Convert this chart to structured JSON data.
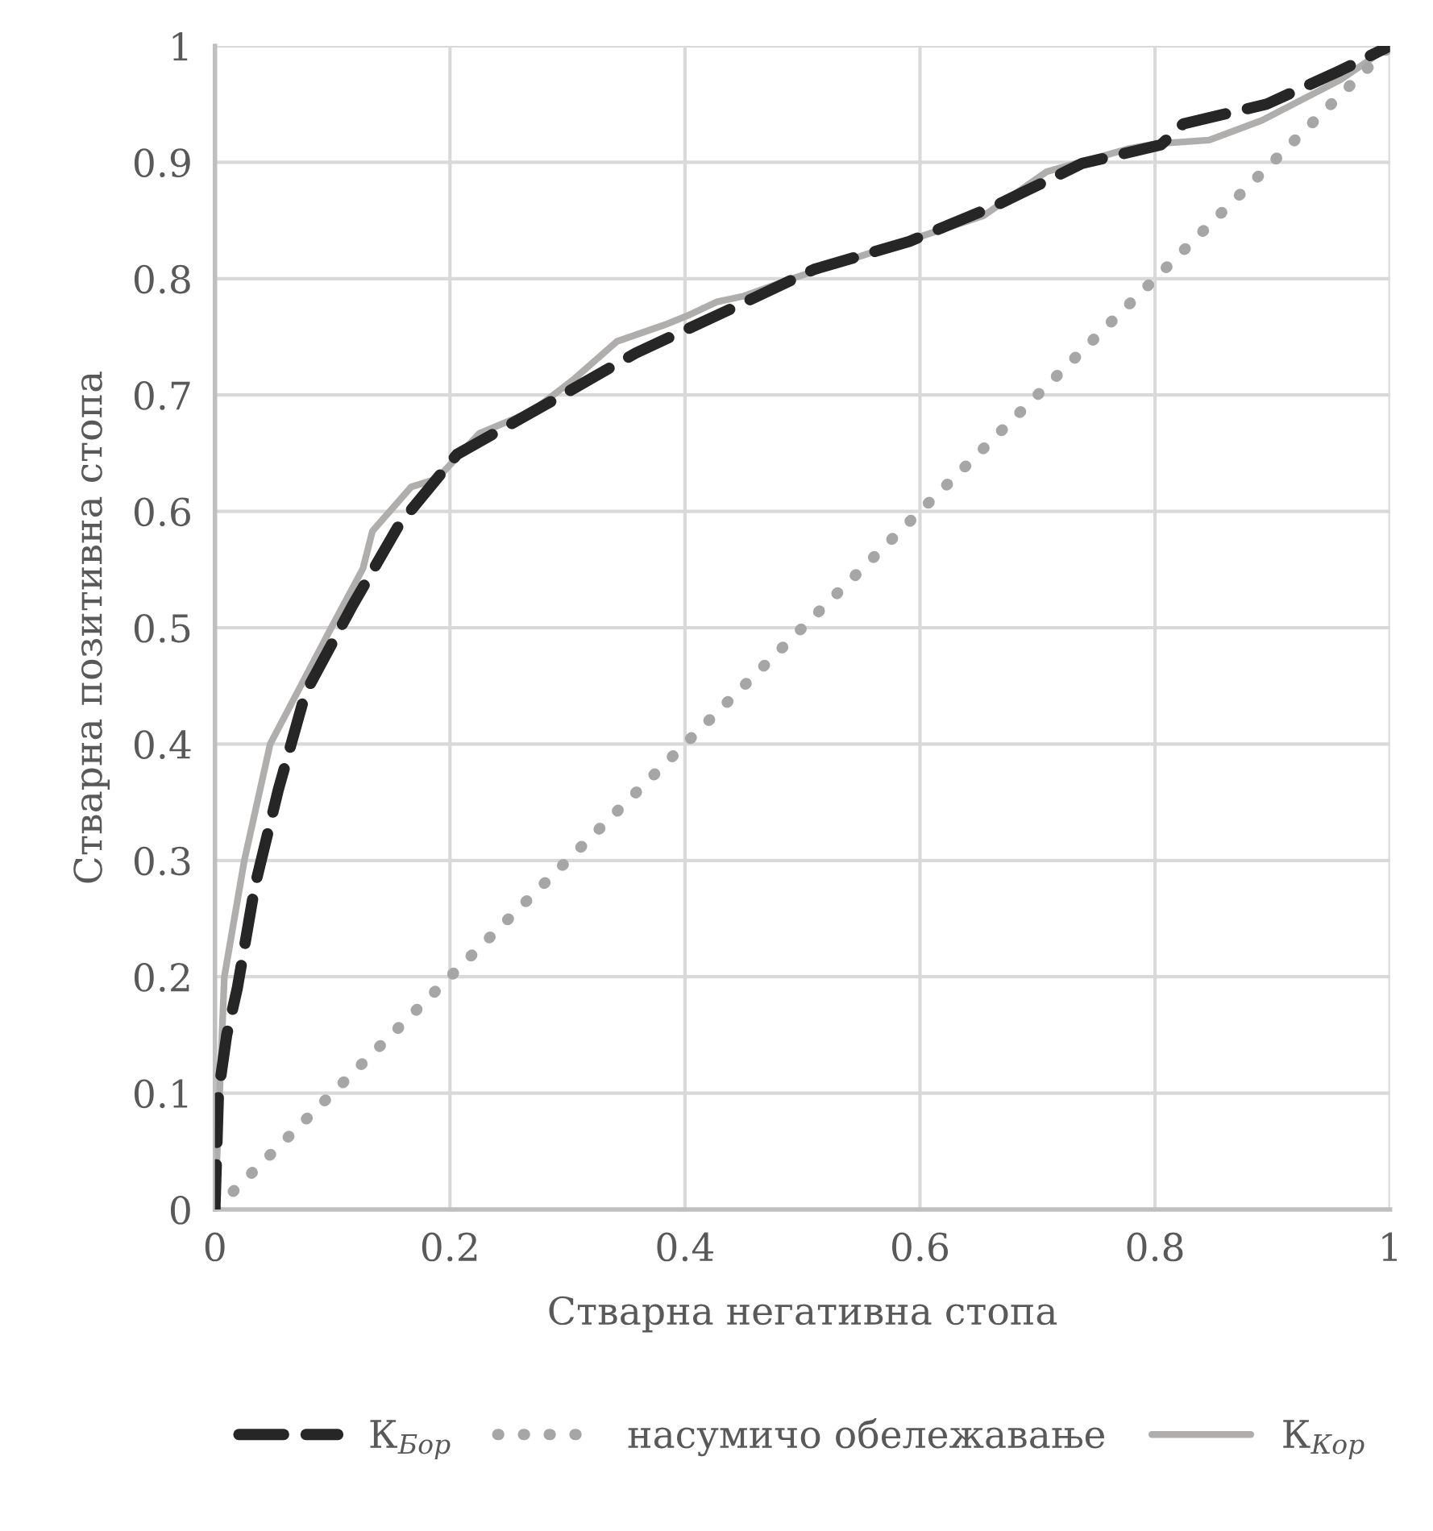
{
  "chart_data": {
    "type": "line",
    "xlabel": "Стварна негативна стопа",
    "ylabel": "Стварна позитивна стопа",
    "xlim": [
      0,
      1
    ],
    "ylim": [
      0,
      1
    ],
    "xticks": [
      0,
      0.2,
      0.4,
      0.6,
      0.8,
      1
    ],
    "yticks": [
      0,
      0.1,
      0.2,
      0.3,
      0.4,
      0.5,
      0.6,
      0.7,
      0.8,
      0.9,
      1
    ],
    "grid": true,
    "legend": "bottom",
    "marker": "none",
    "series": [
      {
        "name": "К$_{Бор}$",
        "color": "#262626",
        "line_style": "dashed",
        "x": [
          0,
          0.003,
          0.01,
          0.019,
          0.034,
          0.054,
          0.077,
          0.117,
          0.157,
          0.206,
          0.287,
          0.358,
          0.439,
          0.51,
          0.591,
          0.667,
          0.738,
          0.805,
          0.824,
          0.895,
          0.958,
          1
        ],
        "values": [
          0,
          0.1,
          0.15,
          0.19,
          0.278,
          0.361,
          0.444,
          0.519,
          0.589,
          0.649,
          0.695,
          0.736,
          0.774,
          0.808,
          0.832,
          0.864,
          0.899,
          0.915,
          0.933,
          0.95,
          0.979,
          1
        ]
      },
      {
        "name": "насумичо обележавање",
        "color": "#a6a6a6",
        "line_style": "dotted",
        "x": [
          0,
          1
        ],
        "values": [
          0,
          1
        ]
      },
      {
        "name": "К$_{Кор}$",
        "color": "#b0adad",
        "line_style": "solid",
        "x": [
          0,
          0.004,
          0.008,
          0.025,
          0.047,
          0.099,
          0.126,
          0.134,
          0.167,
          0.189,
          0.225,
          0.27,
          0.306,
          0.342,
          0.382,
          0.404,
          0.427,
          0.45,
          0.494,
          0.6,
          0.654,
          0.708,
          0.779,
          0.801,
          0.846,
          0.891,
          0.958,
          1
        ],
        "values": [
          0,
          0.1,
          0.2,
          0.3,
          0.4,
          0.5,
          0.551,
          0.583,
          0.621,
          0.628,
          0.667,
          0.686,
          0.714,
          0.746,
          0.76,
          0.769,
          0.78,
          0.785,
          0.801,
          0.836,
          0.854,
          0.892,
          0.912,
          0.916,
          0.919,
          0.936,
          0.971,
          1
        ]
      }
    ]
  }
}
